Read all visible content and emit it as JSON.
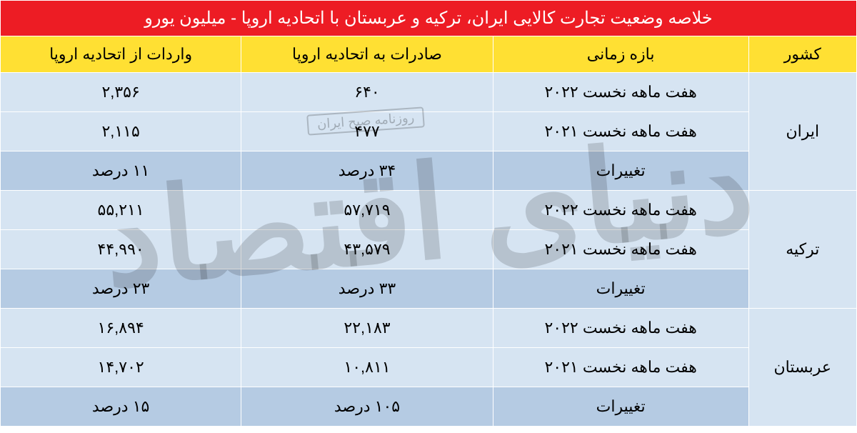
{
  "title": "خلاصه وضعیت تجارت کالایی ایران، ترکیه و عربستان با اتحادیه اروپا - میلیون یورو",
  "columns": [
    "کشور",
    "بازه زمانی",
    "صادرات به اتحادیه اروپا",
    "واردات از اتحادیه اروپا"
  ],
  "countries": [
    {
      "name": "ایران",
      "rows": [
        {
          "period": "هفت ماهه نخست ۲۰۲۲",
          "exports": "۶۴۰",
          "imports": "۲,۳۵۶",
          "shade": "light"
        },
        {
          "period": "هفت ماهه نخست ۲۰۲۱",
          "exports": "۴۷۷",
          "imports": "۲,۱۱۵",
          "shade": "light"
        },
        {
          "period": "تغییرات",
          "exports": "۳۴ درصد",
          "imports": "۱۱ درصد",
          "shade": "dark"
        }
      ]
    },
    {
      "name": "ترکیه",
      "rows": [
        {
          "period": "هفت ماهه نخست ۲۰۲۲",
          "exports": "۵۷,۷۱۹",
          "imports": "۵۵,۲۱۱",
          "shade": "light"
        },
        {
          "period": "هفت ماهه نخست ۲۰۲۱",
          "exports": "۴۳,۵۷۹",
          "imports": "۴۴,۹۹۰",
          "shade": "light"
        },
        {
          "period": "تغییرات",
          "exports": "۳۳ درصد",
          "imports": "۲۳ درصد",
          "shade": "dark"
        }
      ]
    },
    {
      "name": "عربستان",
      "rows": [
        {
          "period": "هفت ماهه نخست ۲۰۲۲",
          "exports": "۲۲,۱۸۳",
          "imports": "۱۶,۸۹۴",
          "shade": "light"
        },
        {
          "period": "هفت ماهه نخست ۲۰۲۱",
          "exports": "۱۰,۸۱۱",
          "imports": "۱۴,۷۰۲",
          "shade": "light"
        },
        {
          "period": "تغییرات",
          "exports": "۱۰۵ درصد",
          "imports": "۱۵ درصد",
          "shade": "dark"
        }
      ]
    }
  ],
  "watermark_text": "دنیای اقتصاد",
  "stamp_text": "روزنامه صبح ایران",
  "colors": {
    "title_bg": "#ed1c24",
    "header_bg": "#ffe033",
    "row_light": "#d6e4f2",
    "row_dark": "#b5cbe3",
    "border": "#ffffff"
  }
}
